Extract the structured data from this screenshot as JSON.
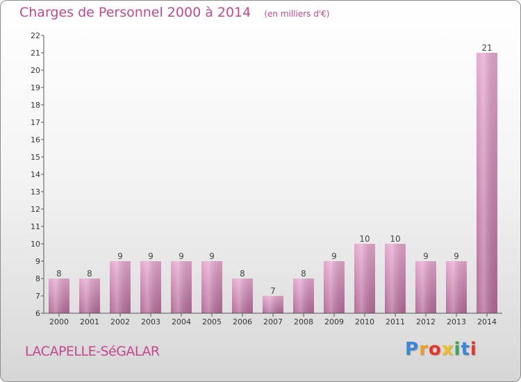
{
  "header": {
    "title": "Charges de Personnel 2000 à 2014",
    "subtitle": "(en milliers d'€)"
  },
  "footer": {
    "commune": "LACAPELLE-SéGALAR",
    "logo_letters": [
      {
        "char": "P",
        "color": "#3a86d8"
      },
      {
        "char": "r",
        "color": "#f0a020"
      },
      {
        "char": "o",
        "color": "#e8342a"
      },
      {
        "char": "x",
        "color": "#f0c020"
      },
      {
        "char": "i",
        "color": "#3aa655"
      },
      {
        "char": "t",
        "color": "#3a86d8"
      },
      {
        "char": "i",
        "color": "#e8342a"
      }
    ]
  },
  "chart_data": {
    "type": "bar",
    "title": "Charges de Personnel 2000 à 2014",
    "subtitle": "(en milliers d'€)",
    "categories": [
      "2000",
      "2001",
      "2002",
      "2003",
      "2004",
      "2005",
      "2006",
      "2007",
      "2008",
      "2009",
      "2010",
      "2011",
      "2012",
      "2013",
      "2014"
    ],
    "values": [
      8,
      8,
      9,
      9,
      9,
      9,
      8,
      7,
      8,
      9,
      10,
      10,
      9,
      9,
      21
    ],
    "data_labels": [
      "8",
      "8",
      "9",
      "9",
      "9",
      "9",
      "8",
      "7",
      "8",
      "9",
      "10",
      "10",
      "9",
      "9",
      "21"
    ],
    "ylim": [
      6,
      22
    ],
    "yticks": [
      "6",
      "7",
      "8",
      "9",
      "10",
      "11",
      "12",
      "13",
      "14",
      "15",
      "16",
      "17",
      "18",
      "19",
      "20",
      "21",
      "22"
    ],
    "grid": false,
    "bar_color_top": "#e6a8cf",
    "bar_color_bottom": "#b36b98",
    "axis_color": "#555555"
  }
}
